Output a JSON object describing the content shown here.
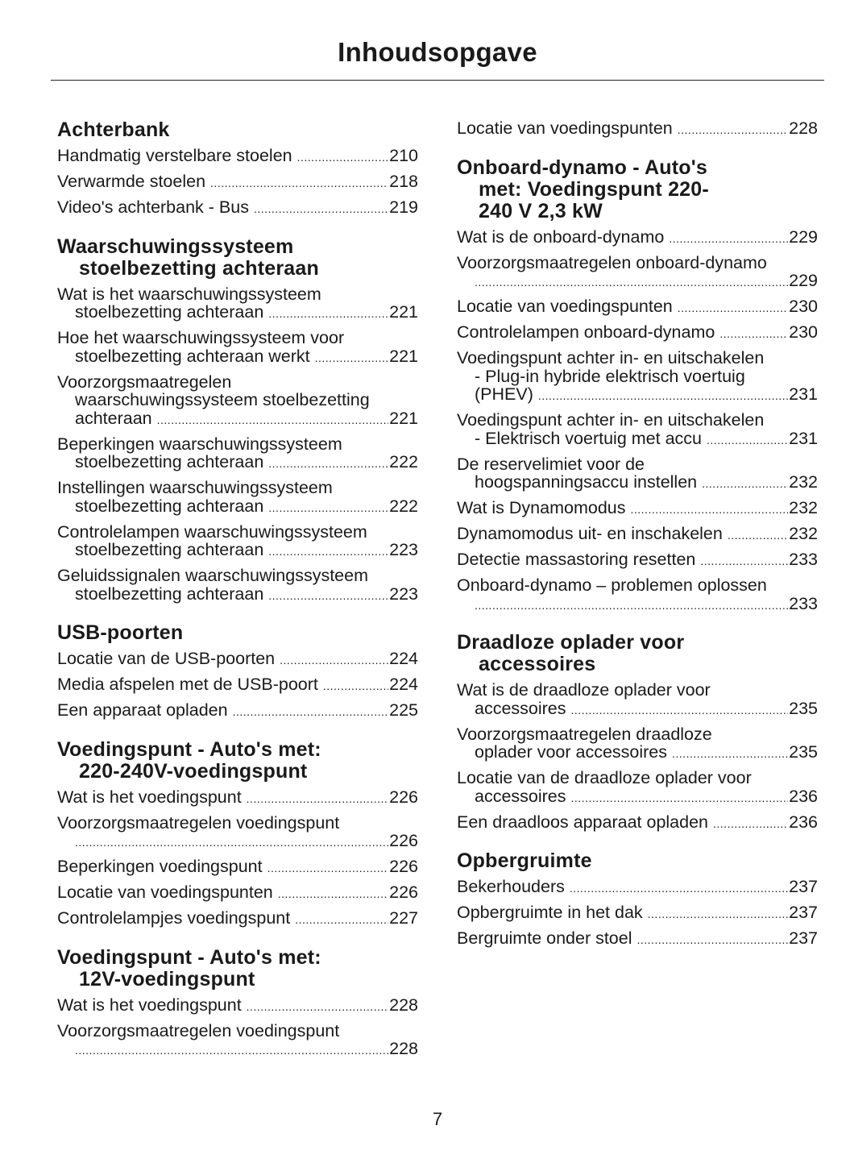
{
  "title": "Inhoudsopgave",
  "page_number": "7",
  "columns": [
    {
      "sections": [
        {
          "heading": [
            "Achterbank"
          ],
          "entries": [
            {
              "lines": [
                "Handmatig verstelbare stoelen"
              ],
              "page": "210"
            },
            {
              "lines": [
                "Verwarmde stoelen"
              ],
              "page": "218"
            },
            {
              "lines": [
                "Video's achterbank - Bus"
              ],
              "page": "219"
            }
          ]
        },
        {
          "heading": [
            "Waarschuwingssysteem",
            "stoelbezetting achteraan"
          ],
          "entries": [
            {
              "lines": [
                "Wat is het waarschuwingssysteem",
                "stoelbezetting achteraan"
              ],
              "page": "221"
            },
            {
              "lines": [
                "Hoe het waarschuwingssysteem voor",
                "stoelbezetting achteraan werkt"
              ],
              "page": "221"
            },
            {
              "lines": [
                "Voorzorgsmaatregelen",
                "waarschuwingssysteem stoelbezetting",
                "achteraan"
              ],
              "page": "221"
            },
            {
              "lines": [
                "Beperkingen waarschuwingssysteem",
                "stoelbezetting achteraan"
              ],
              "page": "222"
            },
            {
              "lines": [
                "Instellingen waarschuwingssysteem",
                "stoelbezetting achteraan"
              ],
              "page": "222"
            },
            {
              "lines": [
                "Controlelampen waarschuwingssysteem",
                "stoelbezetting achteraan"
              ],
              "page": "223"
            },
            {
              "lines": [
                "Geluidssignalen waarschuwingssysteem",
                "stoelbezetting achteraan"
              ],
              "page": "223"
            }
          ]
        },
        {
          "heading": [
            "USB-poorten"
          ],
          "entries": [
            {
              "lines": [
                "Locatie van de USB-poorten"
              ],
              "page": "224"
            },
            {
              "lines": [
                "Media afspelen met de USB-poort"
              ],
              "page": "224"
            },
            {
              "lines": [
                "Een apparaat opladen"
              ],
              "page": "225"
            }
          ]
        },
        {
          "heading": [
            "Voedingspunt - Auto's met:",
            "220-240V-voedingspunt"
          ],
          "entries": [
            {
              "lines": [
                "Wat is het voedingspunt"
              ],
              "page": "226"
            },
            {
              "lines": [
                "Voorzorgsmaatregelen voedingspunt",
                ""
              ],
              "page": "226"
            },
            {
              "lines": [
                "Beperkingen voedingspunt"
              ],
              "page": "226"
            },
            {
              "lines": [
                "Locatie van voedingspunten"
              ],
              "page": "226"
            },
            {
              "lines": [
                "Controlelampjes voedingspunt"
              ],
              "page": "227"
            }
          ]
        },
        {
          "heading": [
            "Voedingspunt - Auto's met:",
            "12V-voedingspunt"
          ],
          "entries": [
            {
              "lines": [
                "Wat is het voedingspunt"
              ],
              "page": "228"
            },
            {
              "lines": [
                "Voorzorgsmaatregelen voedingspunt",
                ""
              ],
              "page": "228"
            }
          ]
        }
      ]
    },
    {
      "sections": [
        {
          "heading": [],
          "entries": [
            {
              "lines": [
                "Locatie van voedingspunten"
              ],
              "page": "228"
            }
          ]
        },
        {
          "heading": [
            "Onboard-dynamo - Auto's",
            "met: Voedingspunt 220-",
            "240 V 2,3 kW"
          ],
          "entries": [
            {
              "lines": [
                "Wat is de onboard-dynamo"
              ],
              "page": "229"
            },
            {
              "lines": [
                "Voorzorgsmaatregelen onboard-dynamo",
                ""
              ],
              "page": "229"
            },
            {
              "lines": [
                "Locatie van voedingspunten"
              ],
              "page": "230"
            },
            {
              "lines": [
                "Controlelampen onboard-dynamo"
              ],
              "page": "230"
            },
            {
              "lines": [
                "Voedingspunt achter in- en uitschakelen",
                "- Plug-in hybride elektrisch voertuig",
                "(PHEV)"
              ],
              "page": "231"
            },
            {
              "lines": [
                "Voedingspunt achter in- en uitschakelen",
                "- Elektrisch voertuig met accu"
              ],
              "page": "231"
            },
            {
              "lines": [
                "De reservelimiet voor de",
                "hoogspanningsaccu instellen"
              ],
              "page": "232"
            },
            {
              "lines": [
                "Wat is Dynamomodus"
              ],
              "page": "232"
            },
            {
              "lines": [
                "Dynamomodus uit- en inschakelen"
              ],
              "page": "232"
            },
            {
              "lines": [
                "Detectie massastoring resetten"
              ],
              "page": "233"
            },
            {
              "lines": [
                "Onboard-dynamo – problemen oplossen",
                ""
              ],
              "page": "233"
            }
          ]
        },
        {
          "heading": [
            "Draadloze oplader voor",
            "accessoires"
          ],
          "entries": [
            {
              "lines": [
                "Wat is de draadloze oplader voor",
                "accessoires"
              ],
              "page": "235"
            },
            {
              "lines": [
                "Voorzorgsmaatregelen draadloze",
                "oplader voor accessoires"
              ],
              "page": "235"
            },
            {
              "lines": [
                "Locatie van de draadloze oplader voor",
                "accessoires"
              ],
              "page": "236"
            },
            {
              "lines": [
                "Een draadloos apparaat opladen"
              ],
              "page": "236"
            }
          ]
        },
        {
          "heading": [
            "Opbergruimte"
          ],
          "entries": [
            {
              "lines": [
                "Bekerhouders"
              ],
              "page": "237"
            },
            {
              "lines": [
                "Opbergruimte in het dak"
              ],
              "page": "237"
            },
            {
              "lines": [
                "Bergruimte onder stoel"
              ],
              "page": "237"
            }
          ]
        }
      ]
    }
  ]
}
